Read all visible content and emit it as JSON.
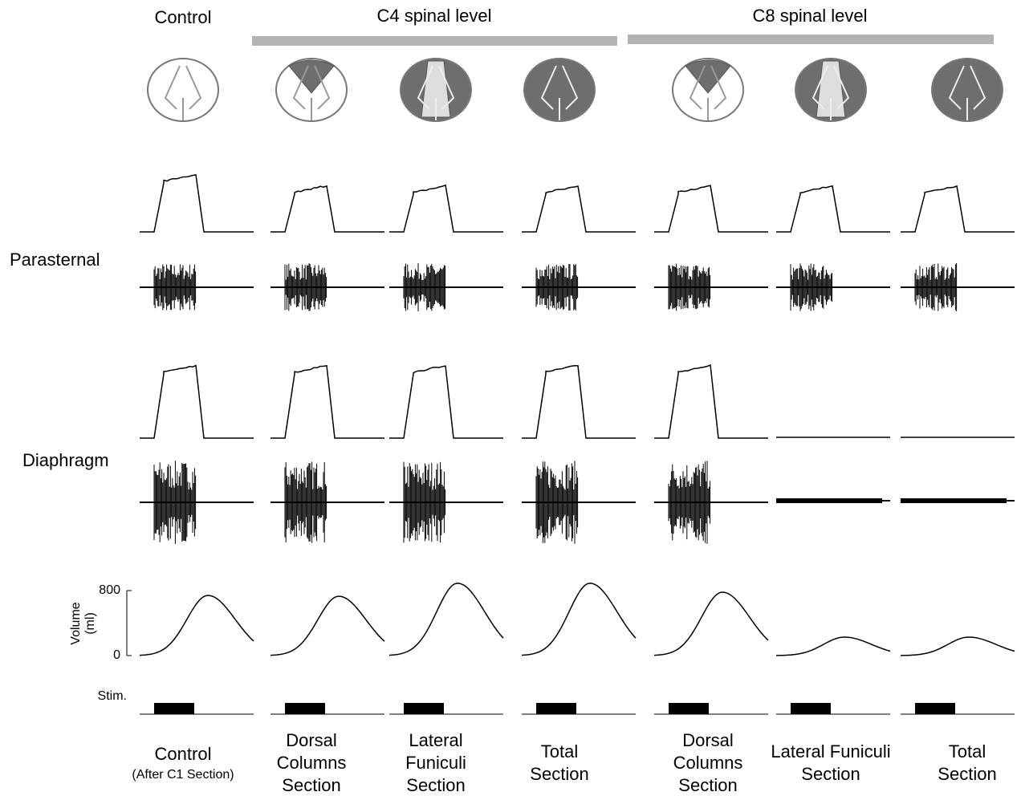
{
  "header": {
    "control": "Control",
    "c4": "C4 spinal level",
    "c8": "C8 spinal level"
  },
  "rows": {
    "parasternal": "Parasternal",
    "diaphragm": "Diaphragm"
  },
  "volume": {
    "axis_label": [
      "Volume",
      "(ml)"
    ],
    "ylim": [
      0,
      800
    ],
    "yticks": [
      0,
      800
    ],
    "peaks": [
      740,
      730,
      890,
      890,
      780,
      227,
      227
    ]
  },
  "stim_label": "Stim.",
  "columns": [
    {
      "lines": [
        "Control"
      ],
      "note": "(After C1 Section)"
    },
    {
      "lines": [
        "Dorsal",
        "Columns",
        "Section"
      ]
    },
    {
      "lines": [
        "Lateral",
        "Funiculi",
        "Section"
      ]
    },
    {
      "lines": [
        "Total",
        "Section"
      ]
    },
    {
      "lines": [
        "Dorsal",
        "Columns",
        "Section"
      ]
    },
    {
      "lines": [
        "Lateral Funiculi",
        "Section"
      ]
    },
    {
      "lines": [
        "Total",
        "Section"
      ]
    }
  ]
}
